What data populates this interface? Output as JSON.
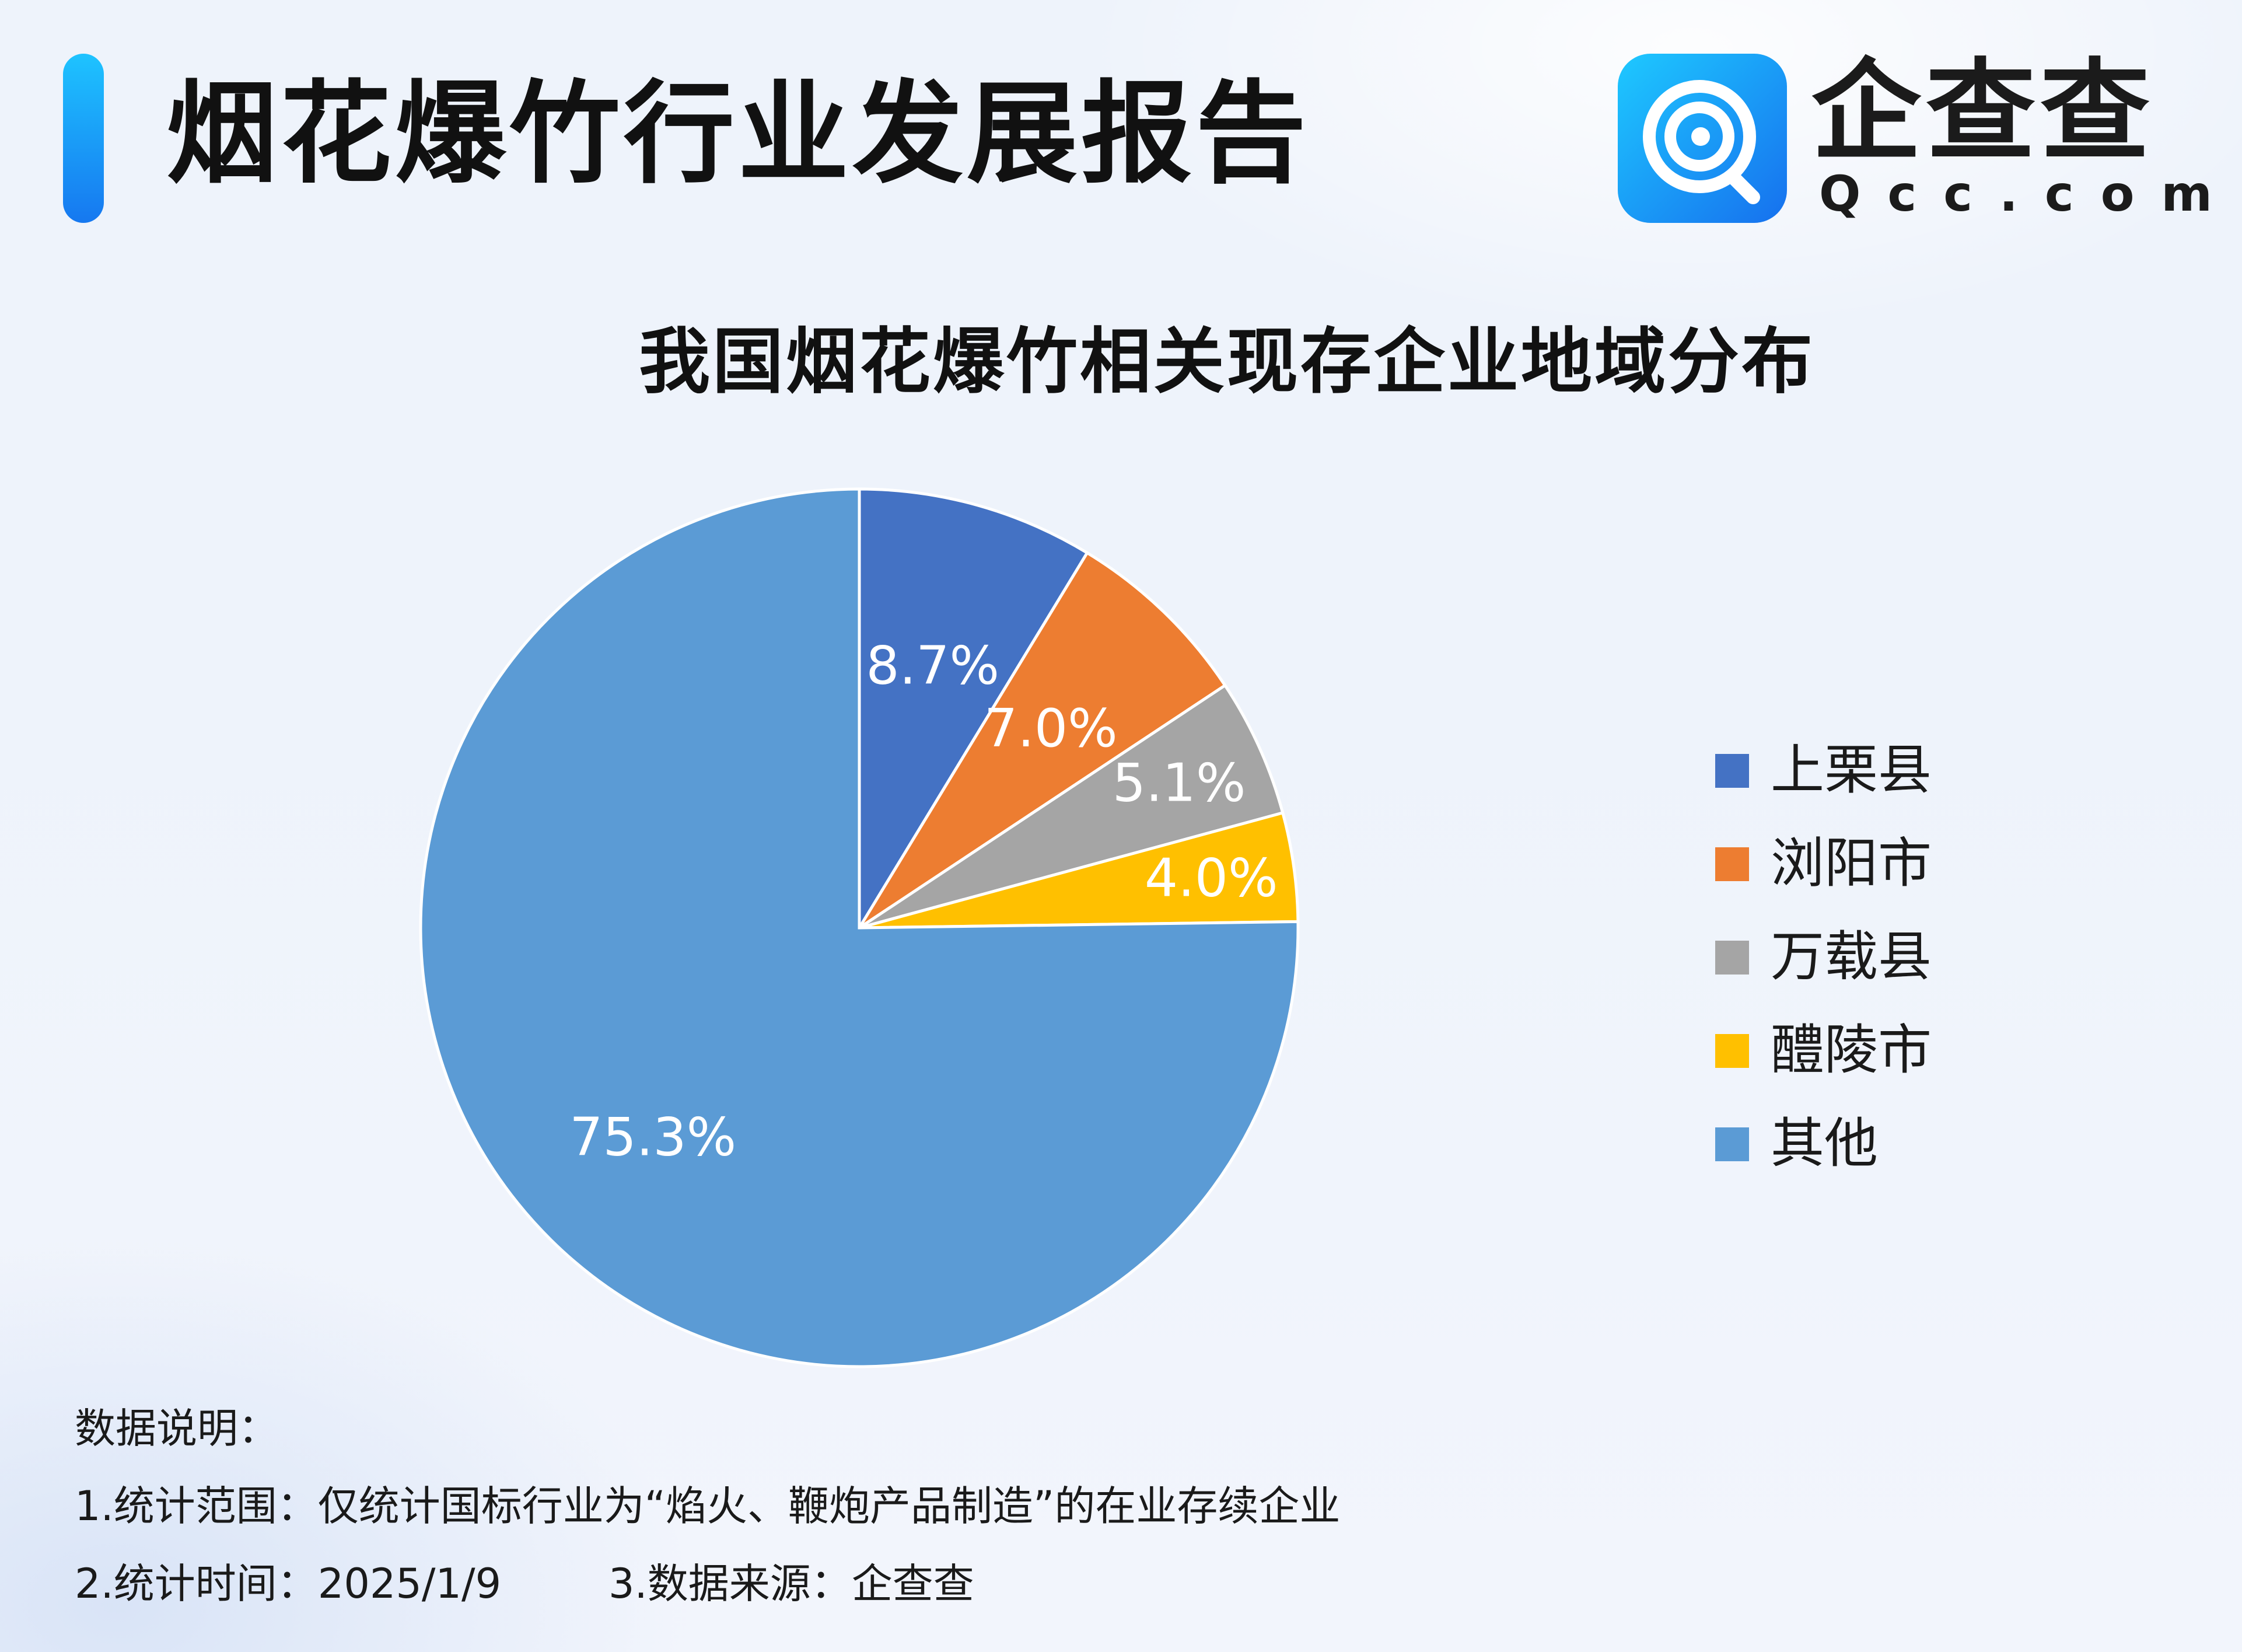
{
  "header": {
    "title": "烟花爆竹行业发展报告"
  },
  "brand": {
    "name": "企查查",
    "domain": "Qcc.com",
    "logo_icon": "qcc-magnifier-logo"
  },
  "colors": {
    "accent": "#1678f0"
  },
  "chart_data": {
    "type": "pie",
    "title": "我国烟花爆竹相关现存企业地域分布",
    "legend_position": "right",
    "slices": [
      {
        "label": "上栗县",
        "value": 8.7,
        "display": "8.7%",
        "color": "#4472c4"
      },
      {
        "label": "浏阳市",
        "value": 7.0,
        "display": "7.0%",
        "color": "#ed7d31"
      },
      {
        "label": "万载县",
        "value": 5.1,
        "display": "5.1%",
        "color": "#a5a5a5"
      },
      {
        "label": "醴陵市",
        "value": 4.0,
        "display": "4.0%",
        "color": "#ffc000"
      },
      {
        "label": "其他",
        "value": 75.3,
        "display": "75.3%",
        "color": "#5b9bd5"
      }
    ]
  },
  "notes": {
    "heading": "数据说明：",
    "line1": "1.统计范围：仅统计国标行业为“焰火、鞭炮产品制造”的在业存续企业",
    "time": "2.统计时间：2025/1/9",
    "source": "3.数据来源：企查查"
  }
}
